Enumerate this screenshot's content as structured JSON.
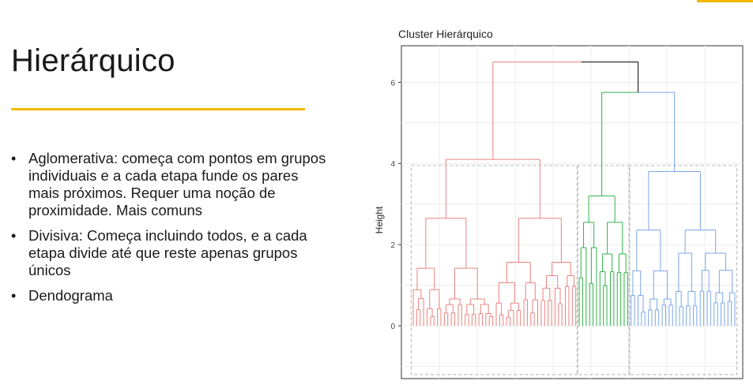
{
  "slide": {
    "title": "Hierárquico",
    "bullets": [
      {
        "text": "Aglomerativa: começa com pontos em grupos individuais e a cada etapa funde os pares mais próximos. Requer uma noção de proximidade. Mais comuns"
      },
      {
        "text": "Divisiva: Começa incluindo todos, e a cada etapa divide até que reste apenas grupos únicos"
      },
      {
        "text": "Dendograma"
      }
    ],
    "bullet_symbol": "•"
  },
  "colors": {
    "accent": "#f5b800",
    "cluster_red": "#e8837e",
    "cluster_green": "#2fb34a",
    "cluster_blue": "#7aa6e6",
    "root_link": "#000000"
  },
  "chart_data": {
    "type": "dendrogram",
    "title": "Cluster Hierárquico",
    "xlabel": "",
    "ylabel": "Height",
    "ylim": [
      -1.3,
      6.9
    ],
    "yticks": [
      0,
      2,
      4,
      6
    ],
    "grid": true,
    "clusters": [
      {
        "name": "",
        "color": "#e8837e",
        "merge_height": 4.1,
        "leaves": 48
      },
      {
        "name": "",
        "color": "#2fb34a",
        "merge_height": 3.2,
        "leaves": 15
      },
      {
        "name": "",
        "color": "#7aa6e6",
        "merge_height": 3.8,
        "leaves": 31
      }
    ],
    "merges": [
      {
        "left": "green",
        "right": "blue",
        "height": 5.75
      },
      {
        "left": "red",
        "right": "green+blue",
        "height": 6.5
      }
    ]
  }
}
